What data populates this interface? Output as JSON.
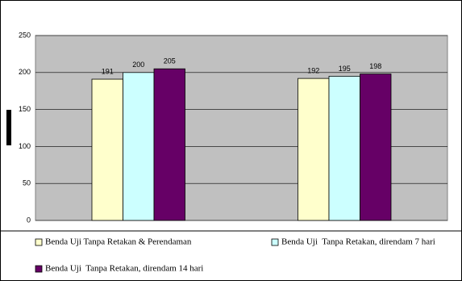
{
  "chart_data": {
    "type": "bar",
    "categories": [
      null,
      null
    ],
    "series": [
      {
        "name": "Benda Uji Tanpa Retakan & Perendaman",
        "color": "#ffffcc",
        "values": [
          191,
          192
        ]
      },
      {
        "name": "Benda Uji  Tanpa Retakan, direndam 7 hari",
        "color": "#ccffff",
        "values": [
          200,
          195
        ]
      },
      {
        "name": "Benda Uji  Tanpa Retakan, direndam 14 hari",
        "color": "#660066",
        "values": [
          205,
          198
        ]
      }
    ],
    "ylim": [
      0,
      250
    ],
    "yticks": [
      0,
      50,
      100,
      150,
      200,
      250
    ],
    "grid": true,
    "legend": "bottom",
    "plot_background": "#c0c0c0"
  }
}
